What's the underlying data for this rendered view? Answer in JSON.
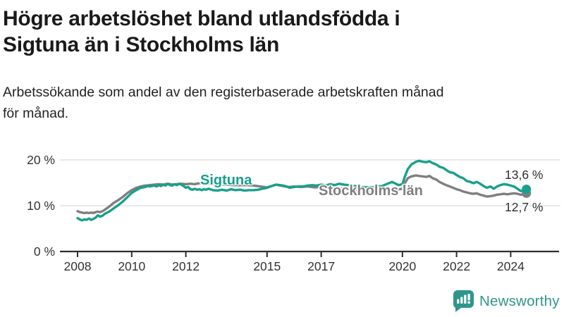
{
  "header": {
    "title_lines": [
      "Högre arbetslöshet bland utlandsfödda i",
      "Sigtuna än i Stockholms län"
    ],
    "subtitle_lines": [
      "Arbetssökande som andel av den registerbaserade arbetskraften månad",
      "för månad."
    ]
  },
  "chart_data": {
    "type": "line",
    "x_unit": "decimal_year",
    "xlim": [
      2007.4,
      2025.4
    ],
    "ylim": [
      0,
      21
    ],
    "grid": "horizontal",
    "legend_position": "inline-labels",
    "grid_color": "#dcdcdc",
    "axis_color": "#2e2e2e",
    "axis_text_color": "#333333",
    "value_label_color": "#2e2e2e",
    "yticks": [
      {
        "value": 0,
        "label": "0 %"
      },
      {
        "value": 10,
        "label": "10 %"
      },
      {
        "value": 20,
        "label": "20 %"
      }
    ],
    "xticks": [
      {
        "value": 2008,
        "label": "2008"
      },
      {
        "value": 2010,
        "label": "2010"
      },
      {
        "value": 2012,
        "label": "2012"
      },
      {
        "value": 2015,
        "label": "2015"
      },
      {
        "value": 2017,
        "label": "2017"
      },
      {
        "value": 2020,
        "label": "2020"
      },
      {
        "value": 2022,
        "label": "2022"
      },
      {
        "value": 2024,
        "label": "2024"
      }
    ],
    "series": [
      {
        "id": "sigtuna",
        "name": "Sigtuna",
        "color": "#17a08d",
        "end_label": "13,6 %",
        "end_value": 13.6,
        "points": [
          [
            2008.0,
            7.3
          ],
          [
            2008.08,
            7.0
          ],
          [
            2008.17,
            6.8
          ],
          [
            2008.25,
            7.0
          ],
          [
            2008.33,
            6.9
          ],
          [
            2008.42,
            7.2
          ],
          [
            2008.5,
            6.9
          ],
          [
            2008.58,
            7.1
          ],
          [
            2008.67,
            7.4
          ],
          [
            2008.75,
            7.9
          ],
          [
            2008.83,
            7.6
          ],
          [
            2008.92,
            7.8
          ],
          [
            2009.0,
            8.2
          ],
          [
            2009.17,
            8.7
          ],
          [
            2009.33,
            9.4
          ],
          [
            2009.5,
            10.1
          ],
          [
            2009.67,
            10.9
          ],
          [
            2009.83,
            11.8
          ],
          [
            2010.0,
            12.8
          ],
          [
            2010.17,
            13.4
          ],
          [
            2010.33,
            13.9
          ],
          [
            2010.5,
            14.1
          ],
          [
            2010.58,
            14.3
          ],
          [
            2010.67,
            14.2
          ],
          [
            2010.83,
            14.4
          ],
          [
            2010.92,
            14.2
          ],
          [
            2011.0,
            14.5
          ],
          [
            2011.08,
            14.3
          ],
          [
            2011.17,
            14.6
          ],
          [
            2011.25,
            14.4
          ],
          [
            2011.33,
            14.8
          ],
          [
            2011.42,
            14.5
          ],
          [
            2011.5,
            14.4
          ],
          [
            2011.58,
            14.7
          ],
          [
            2011.67,
            14.5
          ],
          [
            2011.75,
            14.8
          ],
          [
            2011.83,
            14.6
          ],
          [
            2011.92,
            14.3
          ],
          [
            2012.0,
            13.9
          ],
          [
            2012.08,
            14.1
          ],
          [
            2012.17,
            13.6
          ],
          [
            2012.25,
            13.5
          ],
          [
            2012.33,
            13.7
          ],
          [
            2012.42,
            13.5
          ],
          [
            2012.5,
            13.6
          ],
          [
            2012.58,
            13.4
          ],
          [
            2012.67,
            13.6
          ],
          [
            2012.75,
            13.5
          ],
          [
            2012.83,
            13.7
          ],
          [
            2013.0,
            13.4
          ],
          [
            2013.17,
            13.3
          ],
          [
            2013.33,
            13.5
          ],
          [
            2013.5,
            13.3
          ],
          [
            2013.67,
            13.6
          ],
          [
            2013.83,
            13.4
          ],
          [
            2014.0,
            13.5
          ],
          [
            2014.17,
            13.3
          ],
          [
            2014.33,
            13.4
          ],
          [
            2014.5,
            13.4
          ],
          [
            2014.67,
            13.5
          ],
          [
            2014.83,
            13.7
          ],
          [
            2015.0,
            13.9
          ],
          [
            2015.17,
            14.3
          ],
          [
            2015.33,
            14.6
          ],
          [
            2015.5,
            14.5
          ],
          [
            2015.67,
            14.3
          ],
          [
            2015.83,
            13.9
          ],
          [
            2016.0,
            14.1
          ],
          [
            2016.17,
            14.2
          ],
          [
            2016.33,
            14.2
          ],
          [
            2016.5,
            14.4
          ],
          [
            2016.67,
            14.5
          ],
          [
            2016.83,
            14.4
          ],
          [
            2017.0,
            14.6
          ],
          [
            2017.17,
            14.4
          ],
          [
            2017.33,
            14.7
          ],
          [
            2017.5,
            14.5
          ],
          [
            2017.67,
            14.8
          ],
          [
            2017.83,
            14.6
          ],
          [
            2018.0,
            14.5
          ],
          [
            2018.25,
            14.3
          ],
          [
            2018.5,
            14.1
          ],
          [
            2018.75,
            14.0
          ],
          [
            2019.0,
            14.1
          ],
          [
            2019.25,
            14.3
          ],
          [
            2019.5,
            14.9
          ],
          [
            2019.62,
            15.2
          ],
          [
            2019.75,
            14.8
          ],
          [
            2019.87,
            14.5
          ],
          [
            2020.0,
            14.7
          ],
          [
            2020.1,
            16.5
          ],
          [
            2020.2,
            18.0
          ],
          [
            2020.33,
            19.0
          ],
          [
            2020.5,
            19.6
          ],
          [
            2020.62,
            19.8
          ],
          [
            2020.75,
            19.6
          ],
          [
            2020.87,
            19.5
          ],
          [
            2021.0,
            19.7
          ],
          [
            2021.12,
            19.3
          ],
          [
            2021.25,
            19.0
          ],
          [
            2021.37,
            18.5
          ],
          [
            2021.5,
            18.3
          ],
          [
            2021.62,
            17.8
          ],
          [
            2021.75,
            17.3
          ],
          [
            2021.87,
            17.2
          ],
          [
            2022.0,
            16.7
          ],
          [
            2022.12,
            16.3
          ],
          [
            2022.25,
            16.0
          ],
          [
            2022.37,
            15.4
          ],
          [
            2022.5,
            15.2
          ],
          [
            2022.62,
            14.9
          ],
          [
            2022.75,
            15.2
          ],
          [
            2022.87,
            14.8
          ],
          [
            2023.0,
            14.3
          ],
          [
            2023.12,
            13.9
          ],
          [
            2023.25,
            14.2
          ],
          [
            2023.37,
            13.7
          ],
          [
            2023.5,
            14.2
          ],
          [
            2023.62,
            14.5
          ],
          [
            2023.75,
            14.7
          ],
          [
            2023.87,
            14.6
          ],
          [
            2024.0,
            14.4
          ],
          [
            2024.12,
            14.2
          ],
          [
            2024.25,
            13.7
          ],
          [
            2024.37,
            13.2
          ],
          [
            2024.5,
            13.4
          ],
          [
            2024.58,
            13.6
          ]
        ]
      },
      {
        "id": "stockholms-lan",
        "name": "Stockholms län",
        "color": "#7f7f7f",
        "end_label": "12,7 %",
        "end_value": 12.7,
        "points": [
          [
            2008.0,
            8.8
          ],
          [
            2008.08,
            8.6
          ],
          [
            2008.17,
            8.5
          ],
          [
            2008.25,
            8.4
          ],
          [
            2008.33,
            8.5
          ],
          [
            2008.42,
            8.4
          ],
          [
            2008.5,
            8.5
          ],
          [
            2008.58,
            8.4
          ],
          [
            2008.67,
            8.6
          ],
          [
            2008.75,
            8.7
          ],
          [
            2008.83,
            8.6
          ],
          [
            2008.92,
            8.8
          ],
          [
            2009.0,
            9.1
          ],
          [
            2009.17,
            9.8
          ],
          [
            2009.33,
            10.6
          ],
          [
            2009.5,
            11.2
          ],
          [
            2009.67,
            11.9
          ],
          [
            2009.83,
            12.7
          ],
          [
            2010.0,
            13.4
          ],
          [
            2010.17,
            13.9
          ],
          [
            2010.33,
            14.2
          ],
          [
            2010.5,
            14.4
          ],
          [
            2010.67,
            14.5
          ],
          [
            2010.83,
            14.6
          ],
          [
            2011.0,
            14.7
          ],
          [
            2011.17,
            14.6
          ],
          [
            2011.33,
            14.8
          ],
          [
            2011.5,
            14.6
          ],
          [
            2011.67,
            14.7
          ],
          [
            2011.83,
            14.8
          ],
          [
            2012.0,
            14.7
          ],
          [
            2012.17,
            14.8
          ],
          [
            2012.33,
            14.7
          ],
          [
            2012.5,
            14.9
          ],
          [
            2012.67,
            15.0
          ],
          [
            2012.83,
            14.8
          ],
          [
            2013.0,
            14.7
          ],
          [
            2013.25,
            14.6
          ],
          [
            2013.5,
            14.6
          ],
          [
            2013.75,
            14.5
          ],
          [
            2014.0,
            14.5
          ],
          [
            2014.25,
            14.5
          ],
          [
            2014.5,
            14.4
          ],
          [
            2014.75,
            14.2
          ],
          [
            2015.0,
            14.0
          ],
          [
            2015.17,
            14.3
          ],
          [
            2015.33,
            14.6
          ],
          [
            2015.5,
            14.4
          ],
          [
            2015.67,
            14.2
          ],
          [
            2015.83,
            14.1
          ],
          [
            2016.0,
            14.2
          ],
          [
            2016.25,
            14.1
          ],
          [
            2016.5,
            14.2
          ],
          [
            2016.75,
            14.0
          ],
          [
            2017.0,
            14.1
          ],
          [
            2017.25,
            13.9
          ],
          [
            2017.5,
            13.8
          ],
          [
            2017.75,
            13.7
          ],
          [
            2018.0,
            13.6
          ],
          [
            2018.25,
            13.5
          ],
          [
            2018.5,
            13.4
          ],
          [
            2018.75,
            13.3
          ],
          [
            2019.0,
            13.4
          ],
          [
            2019.25,
            13.5
          ],
          [
            2019.5,
            13.6
          ],
          [
            2019.75,
            13.5
          ],
          [
            2020.0,
            13.7
          ],
          [
            2020.1,
            15.0
          ],
          [
            2020.2,
            16.0
          ],
          [
            2020.33,
            16.4
          ],
          [
            2020.5,
            16.6
          ],
          [
            2020.62,
            16.5
          ],
          [
            2020.75,
            16.4
          ],
          [
            2020.87,
            16.3
          ],
          [
            2021.0,
            16.5
          ],
          [
            2021.12,
            16.0
          ],
          [
            2021.25,
            15.7
          ],
          [
            2021.37,
            15.2
          ],
          [
            2021.5,
            14.8
          ],
          [
            2021.62,
            14.5
          ],
          [
            2021.75,
            14.2
          ],
          [
            2021.87,
            13.9
          ],
          [
            2022.0,
            13.6
          ],
          [
            2022.12,
            13.4
          ],
          [
            2022.25,
            13.1
          ],
          [
            2022.37,
            12.9
          ],
          [
            2022.5,
            12.7
          ],
          [
            2022.62,
            12.6
          ],
          [
            2022.75,
            12.7
          ],
          [
            2022.87,
            12.4
          ],
          [
            2023.0,
            12.2
          ],
          [
            2023.12,
            12.0
          ],
          [
            2023.25,
            12.1
          ],
          [
            2023.37,
            12.2
          ],
          [
            2023.5,
            12.4
          ],
          [
            2023.62,
            12.5
          ],
          [
            2023.75,
            12.6
          ],
          [
            2023.87,
            12.5
          ],
          [
            2024.0,
            12.6
          ],
          [
            2024.12,
            12.7
          ],
          [
            2024.25,
            12.6
          ],
          [
            2024.37,
            12.4
          ],
          [
            2024.5,
            12.5
          ],
          [
            2024.58,
            12.7
          ]
        ]
      }
    ]
  },
  "branding": {
    "logo_text": "Newsworthy",
    "logo_color": "#2f968b"
  }
}
